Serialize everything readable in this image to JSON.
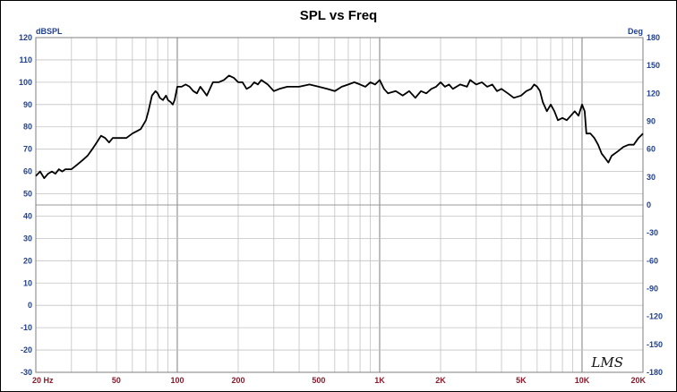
{
  "chart_data": {
    "type": "line",
    "title": "SPL vs Freq",
    "left_axis_unit": "dBSPL",
    "right_axis_unit": "Deg",
    "x_scale": "log",
    "xlim": [
      20,
      20000
    ],
    "ylim": [
      -30,
      120
    ],
    "y2lim": [
      -180,
      180
    ],
    "grid": true,
    "x_tick_labels": [
      {
        "freq": 20,
        "label": "20 Hz"
      },
      {
        "freq": 50,
        "label": "50"
      },
      {
        "freq": 100,
        "label": "100"
      },
      {
        "freq": 200,
        "label": "200"
      },
      {
        "freq": 500,
        "label": "500"
      },
      {
        "freq": 1000,
        "label": "1K"
      },
      {
        "freq": 2000,
        "label": "2K"
      },
      {
        "freq": 5000,
        "label": "5K"
      },
      {
        "freq": 10000,
        "label": "10K"
      },
      {
        "freq": 20000,
        "label": "20K"
      }
    ],
    "y_ticks": [
      120,
      110,
      100,
      90,
      80,
      70,
      60,
      50,
      40,
      30,
      20,
      10,
      0,
      -10,
      -20,
      -30
    ],
    "y2_ticks": [
      180,
      150,
      120,
      90,
      60,
      30,
      0,
      -30,
      -60,
      -90,
      -120,
      -150,
      -180
    ],
    "series": [
      {
        "color": "#000000",
        "points": [
          [
            20,
            58
          ],
          [
            21,
            60
          ],
          [
            22,
            57
          ],
          [
            23,
            59
          ],
          [
            24,
            60
          ],
          [
            25,
            59
          ],
          [
            26,
            61
          ],
          [
            27,
            60
          ],
          [
            28,
            61
          ],
          [
            30,
            61
          ],
          [
            32,
            63
          ],
          [
            34,
            65
          ],
          [
            36,
            67
          ],
          [
            38,
            70
          ],
          [
            40,
            73
          ],
          [
            42,
            76
          ],
          [
            44,
            75
          ],
          [
            46,
            73
          ],
          [
            48,
            75
          ],
          [
            50,
            75
          ],
          [
            53,
            75
          ],
          [
            56,
            75
          ],
          [
            60,
            77
          ],
          [
            63,
            78
          ],
          [
            66,
            79
          ],
          [
            70,
            83
          ],
          [
            72,
            87
          ],
          [
            75,
            94
          ],
          [
            78,
            96
          ],
          [
            80,
            95
          ],
          [
            82,
            93
          ],
          [
            85,
            92
          ],
          [
            88,
            94
          ],
          [
            90,
            92
          ],
          [
            93,
            91
          ],
          [
            95,
            90
          ],
          [
            97,
            92
          ],
          [
            100,
            98
          ],
          [
            105,
            98
          ],
          [
            110,
            99
          ],
          [
            115,
            98
          ],
          [
            120,
            96
          ],
          [
            125,
            95
          ],
          [
            130,
            98
          ],
          [
            135,
            96
          ],
          [
            140,
            94
          ],
          [
            145,
            97
          ],
          [
            150,
            100
          ],
          [
            160,
            100
          ],
          [
            170,
            101
          ],
          [
            180,
            103
          ],
          [
            190,
            102
          ],
          [
            200,
            100
          ],
          [
            210,
            100
          ],
          [
            220,
            97
          ],
          [
            230,
            98
          ],
          [
            240,
            100
          ],
          [
            250,
            99
          ],
          [
            260,
            101
          ],
          [
            280,
            99
          ],
          [
            300,
            96
          ],
          [
            320,
            97
          ],
          [
            350,
            98
          ],
          [
            400,
            98
          ],
          [
            450,
            99
          ],
          [
            500,
            98
          ],
          [
            550,
            97
          ],
          [
            600,
            96
          ],
          [
            650,
            98
          ],
          [
            700,
            99
          ],
          [
            750,
            100
          ],
          [
            800,
            99
          ],
          [
            850,
            98
          ],
          [
            900,
            100
          ],
          [
            950,
            99
          ],
          [
            1000,
            101
          ],
          [
            1050,
            97
          ],
          [
            1100,
            95
          ],
          [
            1200,
            96
          ],
          [
            1300,
            94
          ],
          [
            1400,
            96
          ],
          [
            1500,
            93
          ],
          [
            1600,
            96
          ],
          [
            1700,
            95
          ],
          [
            1800,
            97
          ],
          [
            1900,
            98
          ],
          [
            2000,
            100
          ],
          [
            2100,
            98
          ],
          [
            2200,
            99
          ],
          [
            2300,
            97
          ],
          [
            2500,
            99
          ],
          [
            2700,
            98
          ],
          [
            2800,
            101
          ],
          [
            3000,
            99
          ],
          [
            3200,
            100
          ],
          [
            3400,
            98
          ],
          [
            3600,
            99
          ],
          [
            3800,
            96
          ],
          [
            4000,
            97
          ],
          [
            4300,
            95
          ],
          [
            4600,
            93
          ],
          [
            5000,
            94
          ],
          [
            5300,
            96
          ],
          [
            5600,
            97
          ],
          [
            5800,
            99
          ],
          [
            6000,
            98
          ],
          [
            6200,
            96
          ],
          [
            6400,
            91
          ],
          [
            6700,
            87
          ],
          [
            7000,
            90
          ],
          [
            7300,
            87
          ],
          [
            7600,
            83
          ],
          [
            8000,
            84
          ],
          [
            8400,
            83
          ],
          [
            8800,
            85
          ],
          [
            9200,
            87
          ],
          [
            9600,
            85
          ],
          [
            10000,
            90
          ],
          [
            10300,
            87
          ],
          [
            10500,
            77
          ],
          [
            11000,
            77
          ],
          [
            11500,
            75
          ],
          [
            12000,
            72
          ],
          [
            12500,
            68
          ],
          [
            13000,
            66
          ],
          [
            13500,
            64
          ],
          [
            14000,
            67
          ],
          [
            15000,
            69
          ],
          [
            16000,
            71
          ],
          [
            17000,
            72
          ],
          [
            18000,
            72
          ],
          [
            19000,
            75
          ],
          [
            20000,
            77
          ]
        ]
      }
    ]
  },
  "watermark": "LMS"
}
